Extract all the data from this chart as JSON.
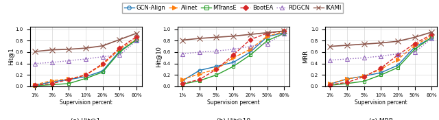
{
  "x_labels": [
    "1%",
    "3%",
    "5%",
    "10%",
    "20%",
    "50%",
    "80%"
  ],
  "x_vals": [
    0,
    1,
    2,
    3,
    4,
    5,
    6
  ],
  "methods": [
    "GCN-Align",
    "Alinet",
    "MTransE",
    "BootEA",
    "RDGCN",
    "IKAMI"
  ],
  "colors": [
    "#1f77b4",
    "#ff7f0e",
    "#2ca02c",
    "#d62728",
    "#9467bd",
    "#8c564b"
  ],
  "linestyles": [
    "-",
    "--",
    "-",
    "--",
    ":",
    "-"
  ],
  "markers": [
    "o",
    ">",
    "s",
    "D",
    "^",
    "x"
  ],
  "markerfacecolors": [
    "none",
    "#ff7f0e",
    "none",
    "#d62728",
    "none",
    "#8c564b"
  ],
  "hit1": {
    "GCN-Align": [
      0.02,
      0.08,
      0.12,
      0.17,
      0.27,
      0.62,
      0.81
    ],
    "Alinet": [
      0.03,
      0.1,
      0.13,
      0.2,
      0.38,
      0.65,
      0.83
    ],
    "MTransE": [
      0.01,
      0.03,
      0.05,
      0.14,
      0.25,
      0.6,
      0.82
    ],
    "BootEA": [
      0.02,
      0.05,
      0.12,
      0.2,
      0.4,
      0.67,
      0.87
    ],
    "RDGCN": [
      0.4,
      0.42,
      0.45,
      0.48,
      0.52,
      0.55,
      0.8
    ],
    "IKAMI": [
      0.61,
      0.64,
      0.65,
      0.67,
      0.71,
      0.82,
      0.93
    ]
  },
  "hit10": {
    "GCN-Align": [
      0.1,
      0.28,
      0.35,
      0.42,
      0.6,
      0.87,
      0.94
    ],
    "Alinet": [
      0.12,
      0.22,
      0.3,
      0.5,
      0.65,
      0.88,
      0.96
    ],
    "MTransE": [
      0.04,
      0.1,
      0.2,
      0.35,
      0.55,
      0.8,
      0.93
    ],
    "BootEA": [
      0.05,
      0.12,
      0.3,
      0.55,
      0.82,
      0.93,
      0.97
    ],
    "RDGCN": [
      0.57,
      0.6,
      0.62,
      0.65,
      0.7,
      0.75,
      0.93
    ],
    "IKAMI": [
      0.81,
      0.84,
      0.86,
      0.88,
      0.91,
      0.94,
      0.97
    ]
  },
  "mrr": {
    "GCN-Align": [
      0.04,
      0.13,
      0.18,
      0.24,
      0.37,
      0.69,
      0.85
    ],
    "Alinet": [
      0.05,
      0.13,
      0.18,
      0.3,
      0.47,
      0.72,
      0.88
    ],
    "MTransE": [
      0.02,
      0.05,
      0.09,
      0.2,
      0.33,
      0.65,
      0.86
    ],
    "BootEA": [
      0.03,
      0.07,
      0.17,
      0.32,
      0.55,
      0.75,
      0.91
    ],
    "RDGCN": [
      0.46,
      0.48,
      0.5,
      0.53,
      0.57,
      0.6,
      0.84
    ],
    "IKAMI": [
      0.7,
      0.72,
      0.74,
      0.76,
      0.79,
      0.86,
      0.95
    ]
  },
  "marker_sizes": [
    3.5,
    4.5,
    3.5,
    3.5,
    4.5,
    5.5
  ],
  "linewidths": [
    1.0,
    1.0,
    1.0,
    1.0,
    1.0,
    1.2
  ],
  "ylabels": [
    "Hit@1",
    "Hit@10",
    "MRR"
  ],
  "subtitles": [
    "(a) Hit@1",
    "(b) Hit@10",
    "(c) MRR"
  ],
  "xlabel": "Supervision percent"
}
